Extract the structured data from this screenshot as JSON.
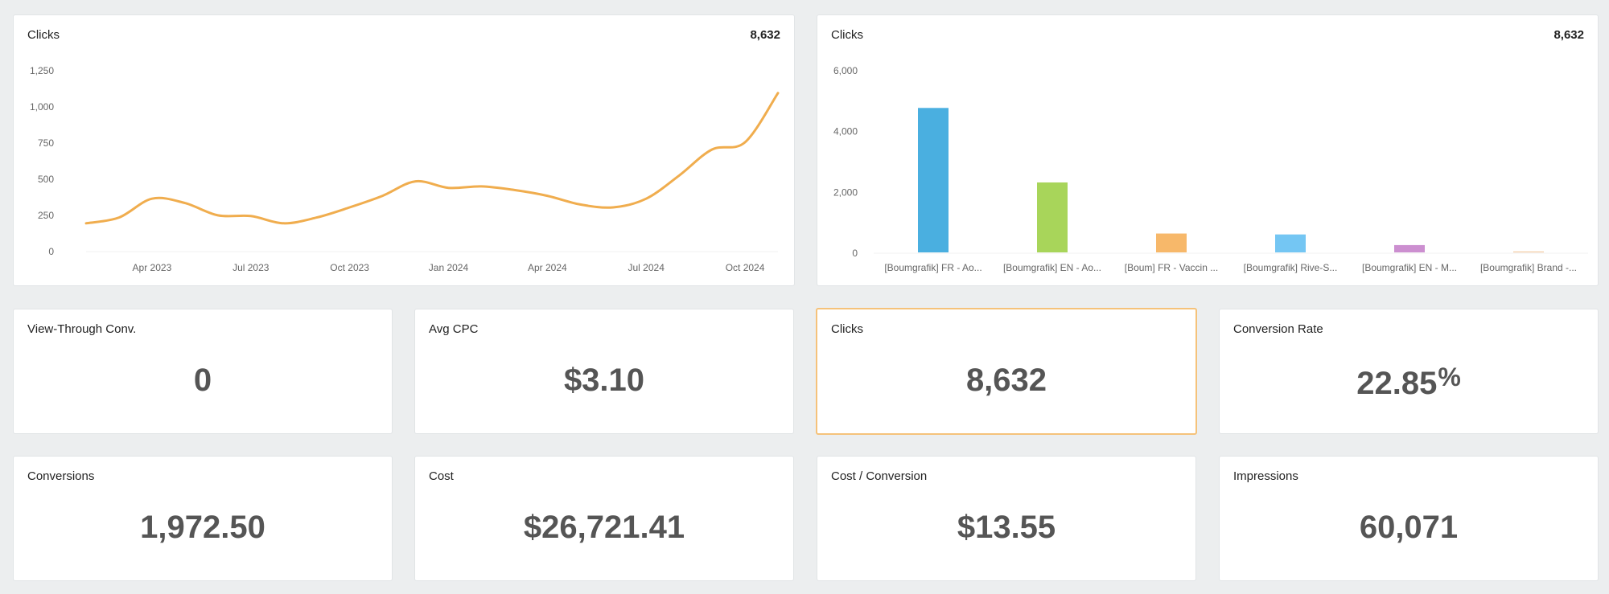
{
  "line_card": {
    "title": "Clicks",
    "total": "8,632"
  },
  "bar_card": {
    "title": "Clicks",
    "total": "8,632"
  },
  "metrics_row1": [
    {
      "label": "View-Through Conv.",
      "value": "0"
    },
    {
      "label": "Avg CPC",
      "value": "$3.10"
    },
    {
      "label": "Clicks",
      "value": "8,632"
    },
    {
      "label": "Conversion Rate",
      "value": "22.85",
      "suffix": "%"
    }
  ],
  "metrics_row2": [
    {
      "label": "Conversions",
      "value": "1,972.50"
    },
    {
      "label": "Cost",
      "value": "$26,721.41"
    },
    {
      "label": "Cost / Conversion",
      "value": "$13.55"
    },
    {
      "label": "Impressions",
      "value": "60,071"
    }
  ],
  "colors": {
    "line": "#f0ad4e",
    "bars": [
      "#4aafe0",
      "#a8d55a",
      "#f7b86a",
      "#74c6f3",
      "#cc8fd0",
      "#f2c79c"
    ],
    "highlight_border": "#f5c27a"
  },
  "chart_data": [
    {
      "type": "line",
      "title": "Clicks",
      "x": [
        "2023-02",
        "2023-03",
        "2023-04",
        "2023-05",
        "2023-06",
        "2023-07",
        "2023-08",
        "2023-09",
        "2023-10",
        "2023-11",
        "2023-12",
        "2024-01",
        "2024-02",
        "2024-03",
        "2024-04",
        "2024-05",
        "2024-06",
        "2024-07",
        "2024-08",
        "2024-09",
        "2024-10",
        "2024-11"
      ],
      "values": [
        190,
        230,
        360,
        330,
        245,
        240,
        190,
        230,
        300,
        380,
        480,
        435,
        445,
        420,
        380,
        320,
        300,
        360,
        520,
        700,
        750,
        1090
      ],
      "x_tick_labels": [
        "Apr 2023",
        "Jul 2023",
        "Oct 2023",
        "Jan 2024",
        "Apr 2024",
        "Jul 2024",
        "Oct 2024"
      ],
      "x_tick_index": [
        2,
        5,
        8,
        11,
        14,
        17,
        20
      ],
      "y_ticks": [
        "0",
        "250",
        "500",
        "750",
        "1,000",
        "1,250"
      ],
      "ylim": [
        0,
        1250
      ]
    },
    {
      "type": "bar",
      "title": "Clicks",
      "categories": [
        "[Boumgrafik] FR - Ao...",
        "[Boumgrafik] EN - Ao...",
        "[Boum] FR - Vaccin ...",
        "[Boumgrafik] Rive-S...",
        "[Boumgrafik] EN - M...",
        "[Boumgrafik] Brand -..."
      ],
      "values": [
        4750,
        2300,
        620,
        590,
        240,
        30
      ],
      "y_ticks": [
        "0",
        "2,000",
        "4,000",
        "6,000"
      ],
      "ylim": [
        0,
        6000
      ]
    }
  ]
}
